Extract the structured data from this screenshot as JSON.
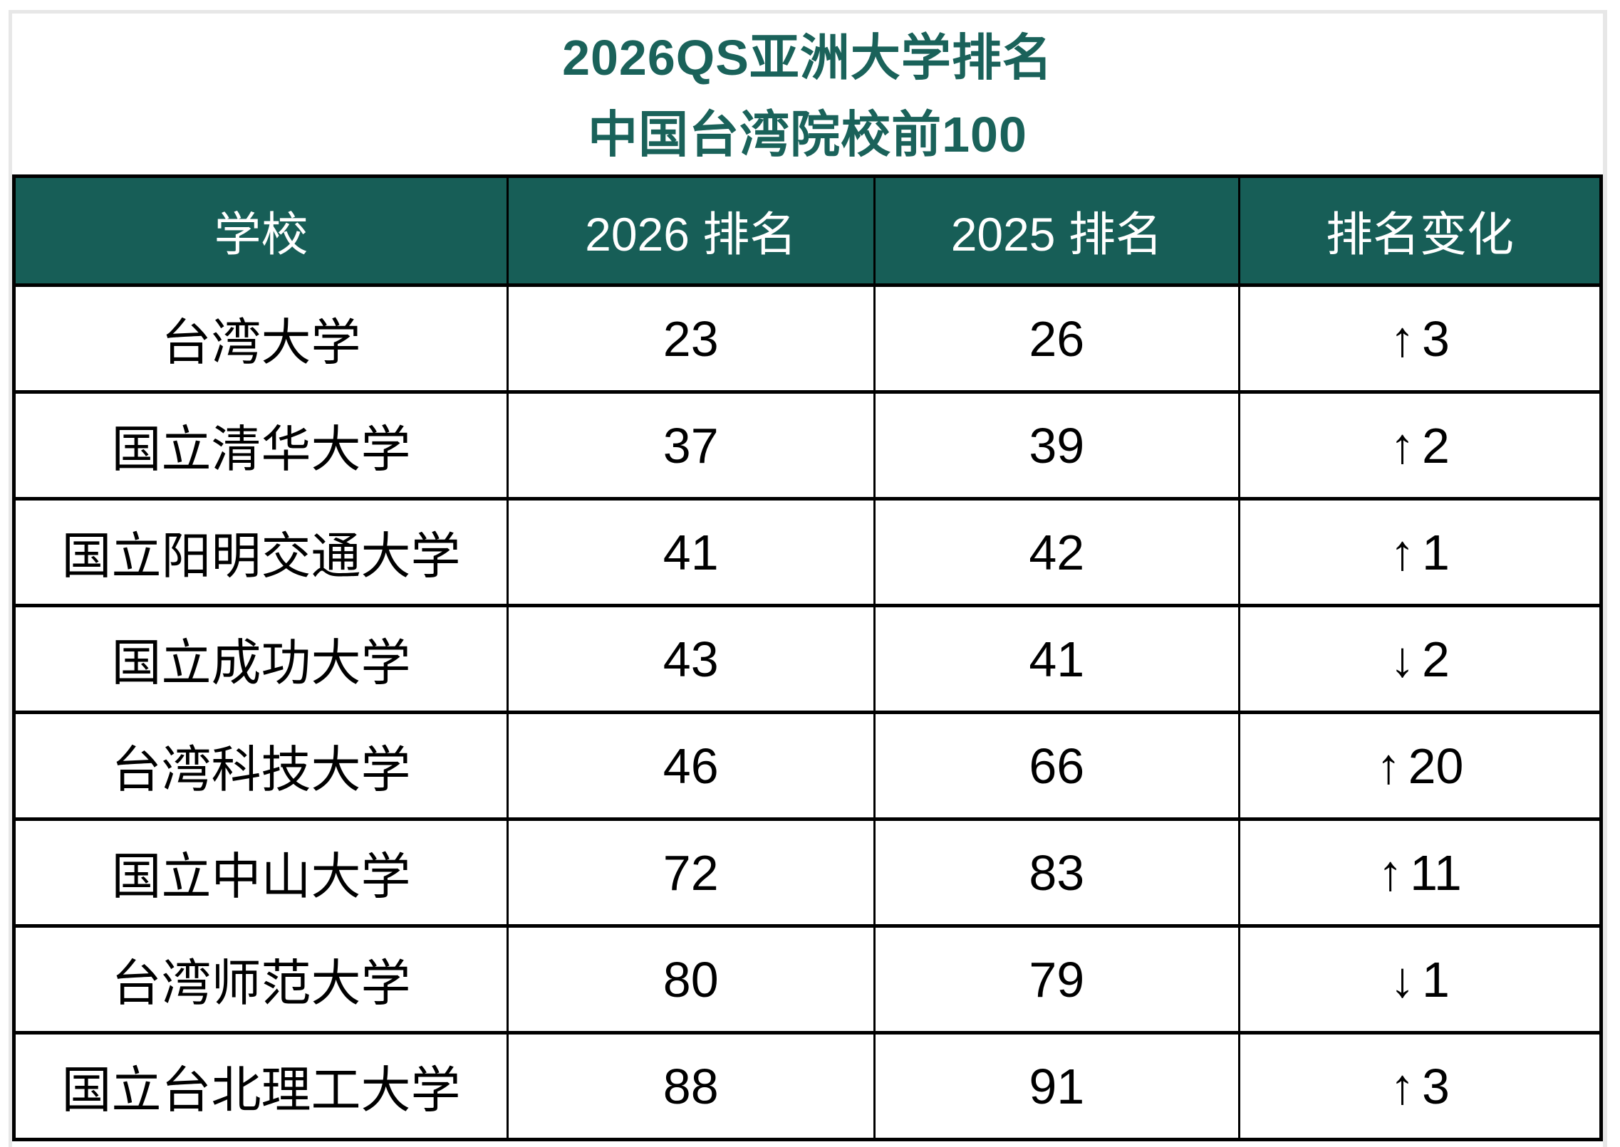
{
  "title": {
    "line1": "2026QS亚洲大学排名",
    "line2": "中国台湾院校前100"
  },
  "table": {
    "headers": [
      "学校",
      "2026 排名",
      "2025 排名",
      "排名变化"
    ],
    "rows": [
      {
        "school": "台湾大学",
        "rank2026": "23",
        "rank2025": "26",
        "change": {
          "arrow": "↑",
          "value": "3",
          "direction": "up"
        }
      },
      {
        "school": "国立清华大学",
        "rank2026": "37",
        "rank2025": "39",
        "change": {
          "arrow": "↑",
          "value": "2",
          "direction": "up"
        }
      },
      {
        "school": "国立阳明交通大学",
        "rank2026": "41",
        "rank2025": "42",
        "change": {
          "arrow": "↑",
          "value": "1",
          "direction": "up"
        }
      },
      {
        "school": "国立成功大学",
        "rank2026": "43",
        "rank2025": "41",
        "change": {
          "arrow": "↓",
          "value": "2",
          "direction": "down"
        }
      },
      {
        "school": "台湾科技大学",
        "rank2026": "46",
        "rank2025": "66",
        "change": {
          "arrow": "↑",
          "value": "20",
          "direction": "up"
        }
      },
      {
        "school": "国立中山大学",
        "rank2026": "72",
        "rank2025": "83",
        "change": {
          "arrow": "↑",
          "value": "11",
          "direction": "up"
        }
      },
      {
        "school": "台湾师范大学",
        "rank2026": "80",
        "rank2025": "79",
        "change": {
          "arrow": "↓",
          "value": "1",
          "direction": "down"
        }
      },
      {
        "school": "国立台北理工大学",
        "rank2026": "88",
        "rank2025": "91",
        "change": {
          "arrow": "↑",
          "value": "3",
          "direction": "up"
        }
      }
    ]
  },
  "colors": {
    "title_text": "#1a625a",
    "header_background": "#175e57",
    "up_change": "#000000",
    "down_change": "#c00000",
    "gridline_gray": "#e7e7e7"
  }
}
